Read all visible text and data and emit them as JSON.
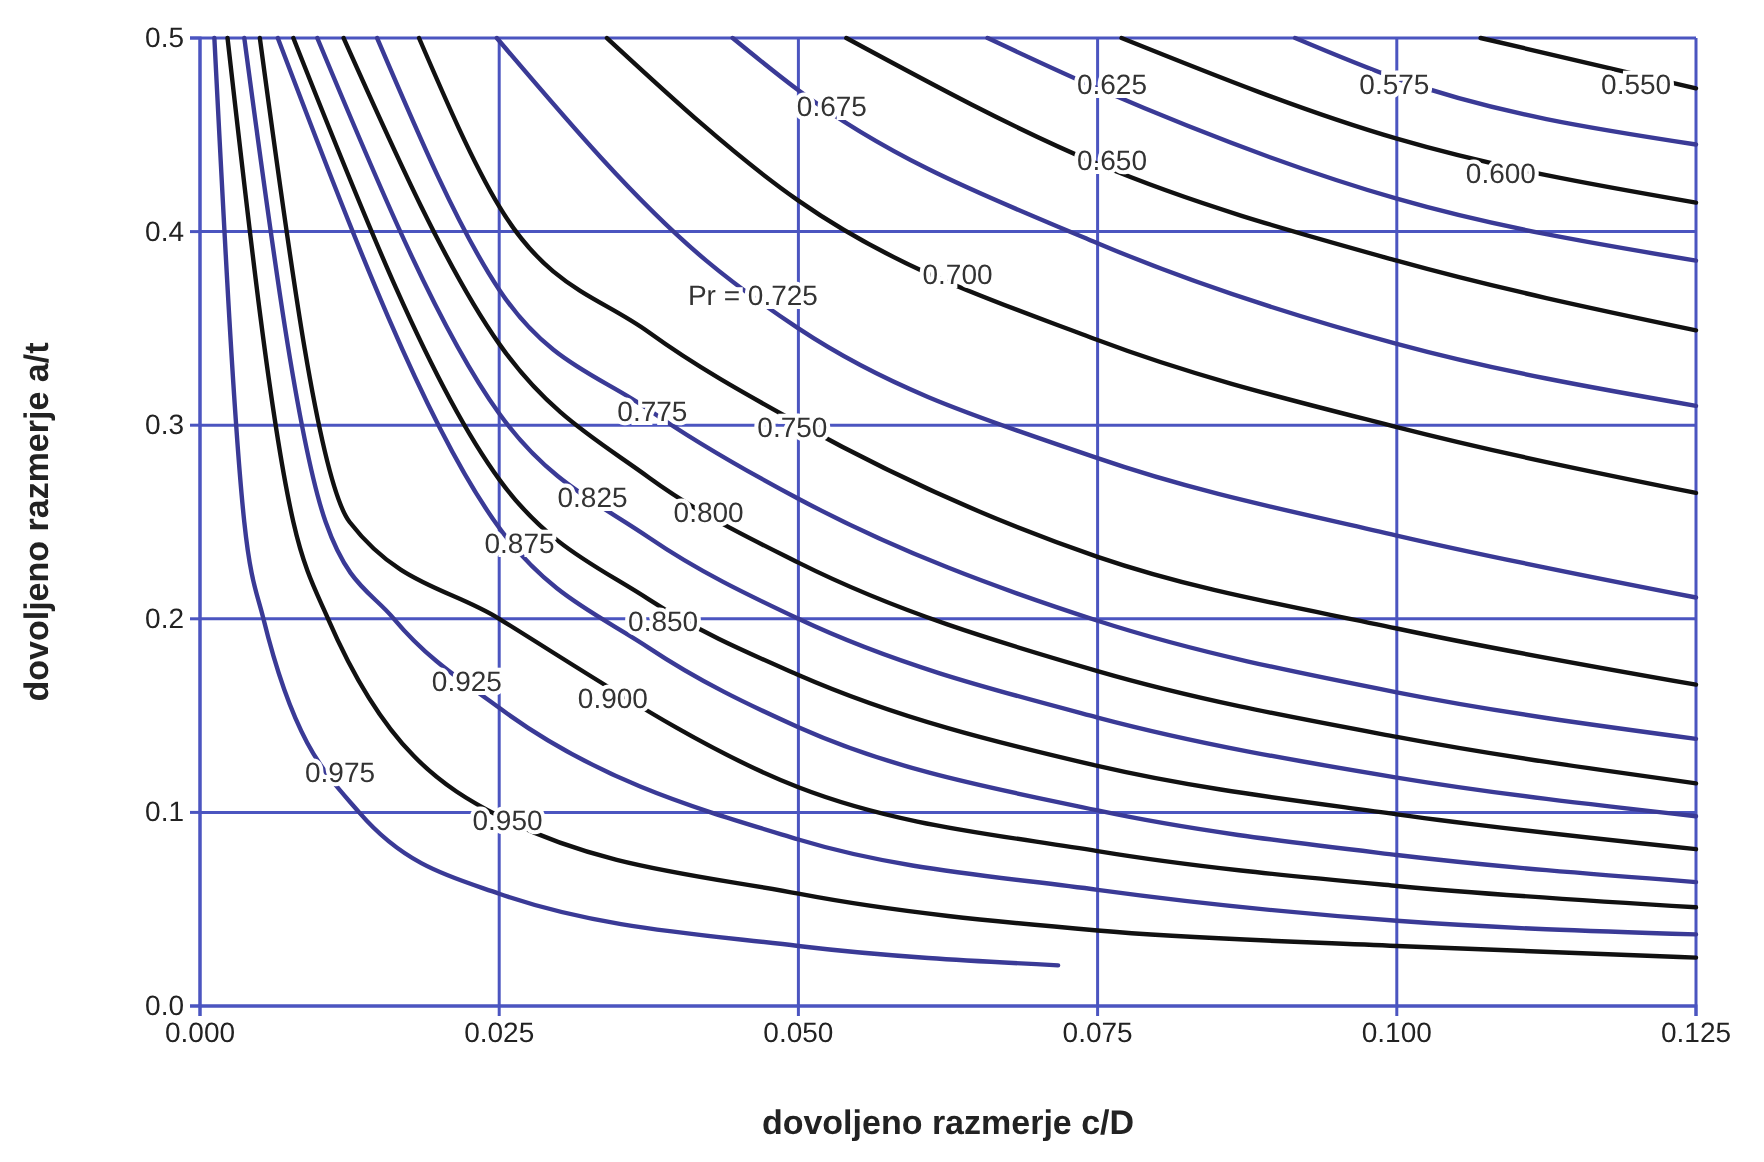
{
  "chart_data": {
    "type": "line",
    "xlabel": "dovoljeno razmerje c/D",
    "ylabel": "dovoljeno razmerje a/t",
    "xlim": [
      0,
      0.125
    ],
    "ylim": [
      0,
      0.5
    ],
    "xticks": [
      {
        "value": 0,
        "label": "0.000"
      },
      {
        "value": 0.025,
        "label": "0.025"
      },
      {
        "value": 0.05,
        "label": "0.050"
      },
      {
        "value": 0.075,
        "label": "0.075"
      },
      {
        "value": 0.1,
        "label": "0.100"
      },
      {
        "value": 0.125,
        "label": "0.125"
      }
    ],
    "yticks": [
      {
        "value": 0,
        "label": "0.0"
      },
      {
        "value": 0.1,
        "label": "0.1"
      },
      {
        "value": 0.2,
        "label": "0.2"
      },
      {
        "value": 0.3,
        "label": "0.3"
      },
      {
        "value": 0.4,
        "label": "0.4"
      },
      {
        "value": 0.5,
        "label": "0.5"
      }
    ],
    "grid": true,
    "marker": "none",
    "line_style": "solid",
    "series": [
      {
        "color": "#111111",
        "x": [
          0.107,
          0.125
        ],
        "values": [
          0.5,
          0.474
        ]
      },
      {
        "color": "#3a3a96",
        "x": [
          0.0915,
          0.1,
          0.125
        ],
        "values": [
          0.5,
          0.479,
          0.445
        ]
      },
      {
        "color": "#111111",
        "x": [
          0.077,
          0.1,
          0.125
        ],
        "values": [
          0.5,
          0.448,
          0.415
        ]
      },
      {
        "color": "#3a3a96",
        "x": [
          0.0658,
          0.075,
          0.1,
          0.125
        ],
        "values": [
          0.5,
          0.474,
          0.417,
          0.385
        ]
      },
      {
        "color": "#111111",
        "x": [
          0.054,
          0.075,
          0.1,
          0.125
        ],
        "values": [
          0.5,
          0.435,
          0.385,
          0.349
        ]
      },
      {
        "color": "#3a3a96",
        "x": [
          0.0445,
          0.05,
          0.075,
          0.1,
          0.125
        ],
        "values": [
          0.5,
          0.473,
          0.394,
          0.342,
          0.31
        ]
      },
      {
        "color": "#111111",
        "x": [
          0.034,
          0.05,
          0.075,
          0.1,
          0.125
        ],
        "values": [
          0.5,
          0.416,
          0.344,
          0.299,
          0.265
        ]
      },
      {
        "color": "#3a3a96",
        "x": [
          0.0248,
          0.0423,
          0.05,
          0.075,
          0.1,
          0.125
        ],
        "values": [
          0.5,
          0.385,
          0.35,
          0.283,
          0.243,
          0.211
        ]
      },
      {
        "color": "#111111",
        "x": [
          0.0183,
          0.025,
          0.0375,
          0.05,
          0.075,
          0.1,
          0.125
        ],
        "values": [
          0.5,
          0.413,
          0.348,
          0.301,
          0.232,
          0.195,
          0.166
        ]
      },
      {
        "color": "#3a3a96",
        "x": [
          0.0148,
          0.025,
          0.0375,
          0.05,
          0.075,
          0.1,
          0.125
        ],
        "values": [
          0.5,
          0.37,
          0.308,
          0.262,
          0.199,
          0.162,
          0.138
        ]
      },
      {
        "color": "#111111",
        "x": [
          0.012,
          0.025,
          0.0375,
          0.05,
          0.075,
          0.1,
          0.125
        ],
        "values": [
          0.5,
          0.342,
          0.273,
          0.229,
          0.173,
          0.139,
          0.115
        ]
      },
      {
        "color": "#3a3a96",
        "x": [
          0.0098,
          0.025,
          0.0375,
          0.05,
          0.075,
          0.1,
          0.125
        ],
        "values": [
          0.5,
          0.306,
          0.242,
          0.2,
          0.149,
          0.118,
          0.098
        ]
      },
      {
        "color": "#111111",
        "x": [
          0.0078,
          0.025,
          0.0375,
          0.05,
          0.075,
          0.1,
          0.125
        ],
        "values": [
          0.5,
          0.272,
          0.21,
          0.171,
          0.124,
          0.099,
          0.081
        ]
      },
      {
        "color": "#3a3a96",
        "x": [
          0.0065,
          0.025,
          0.0375,
          0.05,
          0.075,
          0.1,
          0.125
        ],
        "values": [
          0.5,
          0.247,
          0.185,
          0.144,
          0.101,
          0.078,
          0.064
        ]
      },
      {
        "color": "#111111",
        "x": [
          0.005,
          0.0125,
          0.025,
          0.05,
          0.075,
          0.1,
          0.125
        ],
        "values": [
          0.5,
          0.25,
          0.2,
          0.113,
          0.08,
          0.062,
          0.051
        ]
      },
      {
        "color": "#3a3a96",
        "x": [
          0.0037,
          0.0105,
          0.0162,
          0.025,
          0.05,
          0.075,
          0.1,
          0.125
        ],
        "values": [
          0.5,
          0.25,
          0.2,
          0.154,
          0.086,
          0.06,
          0.044,
          0.037
        ]
      },
      {
        "color": "#111111",
        "x": [
          0.0023,
          0.0078,
          0.0107,
          0.025,
          0.05,
          0.075,
          0.1,
          0.125
        ],
        "values": [
          0.5,
          0.25,
          0.2,
          0.098,
          0.058,
          0.039,
          0.031,
          0.025
        ]
      },
      {
        "color": "#3a3a96",
        "x": [
          0.0012,
          0.0037,
          0.0053,
          0.0133,
          0.025,
          0.05,
          0.0717
        ],
        "values": [
          0.5,
          0.25,
          0.2,
          0.1,
          0.058,
          0.031,
          0.021
        ]
      }
    ],
    "annotations": [
      {
        "text": "0.675",
        "x": 0.0528,
        "y": 0.465
      },
      {
        "text": "0.625",
        "x": 0.0762,
        "y": 0.476
      },
      {
        "text": "0.575",
        "x": 0.0998,
        "y": 0.476
      },
      {
        "text": "0.550",
        "x": 0.12,
        "y": 0.476
      },
      {
        "text": "0.650",
        "x": 0.0762,
        "y": 0.437
      },
      {
        "text": "0.600",
        "x": 0.1087,
        "y": 0.43
      },
      {
        "text": "0.700",
        "x": 0.0633,
        "y": 0.378
      },
      {
        "text": "Pr = 0.725",
        "x": 0.0462,
        "y": 0.367
      },
      {
        "text": "0.775",
        "x": 0.0378,
        "y": 0.307
      },
      {
        "text": "0.750",
        "x": 0.0495,
        "y": 0.299
      },
      {
        "text": "0.825",
        "x": 0.0328,
        "y": 0.263
      },
      {
        "text": "0.800",
        "x": 0.0425,
        "y": 0.255
      },
      {
        "text": "0.875",
        "x": 0.0267,
        "y": 0.239
      },
      {
        "text": "0.850",
        "x": 0.0387,
        "y": 0.199
      },
      {
        "text": "0.925",
        "x": 0.0223,
        "y": 0.168
      },
      {
        "text": "0.900",
        "x": 0.0345,
        "y": 0.159
      },
      {
        "text": "0.975",
        "x": 0.0117,
        "y": 0.121
      },
      {
        "text": "0.950",
        "x": 0.0257,
        "y": 0.096
      }
    ]
  }
}
